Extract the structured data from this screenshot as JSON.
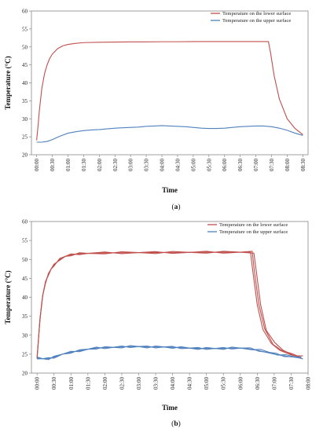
{
  "chart_data": [
    {
      "type": "line",
      "panel_label": "a",
      "caption_open": "(",
      "caption_close": ")",
      "xlabel": "Time",
      "ylabel": "Temperature (°C)",
      "ylim": [
        20,
        60
      ],
      "y_ticks": [
        "20",
        "25",
        "30",
        "35",
        "40",
        "45",
        "50",
        "55",
        "60"
      ],
      "x_ticks": [
        "00:00",
        "00:30",
        "01:00",
        "01:30",
        "02:00",
        "02:30",
        "03:00",
        "03:30",
        "04:00",
        "04:30",
        "05:00",
        "05:30",
        "06:00",
        "06:30",
        "07:00",
        "07:30",
        "08:00",
        "08:30"
      ],
      "xlim_minutes": [
        -10,
        520
      ],
      "grid": false,
      "legend_position": "top-right",
      "series": [
        {
          "name": "Temperature on the lower surface",
          "color": "#c0504d",
          "replicates": 1,
          "x": [
            0,
            3,
            5,
            8,
            10,
            15,
            20,
            25,
            30,
            40,
            50,
            60,
            75,
            90,
            120,
            150,
            180,
            210,
            240,
            270,
            300,
            330,
            360,
            390,
            420,
            444,
            448,
            455,
            465,
            480,
            495,
            510
          ],
          "values": [
            24.0,
            28.5,
            32.0,
            36.0,
            38.5,
            42.5,
            45.0,
            46.8,
            48.0,
            49.5,
            50.3,
            50.7,
            51.0,
            51.2,
            51.3,
            51.35,
            51.4,
            51.4,
            51.45,
            51.45,
            51.5,
            51.5,
            51.5,
            51.5,
            51.5,
            51.5,
            48.5,
            42.0,
            35.5,
            30.0,
            27.3,
            25.6
          ]
        },
        {
          "name": "Temperature on the upper surface",
          "color": "#4f81bd",
          "replicates": 1,
          "x": [
            0,
            10,
            20,
            30,
            45,
            60,
            75,
            90,
            105,
            120,
            135,
            150,
            165,
            180,
            195,
            210,
            225,
            240,
            255,
            270,
            285,
            300,
            315,
            330,
            345,
            360,
            375,
            390,
            405,
            420,
            435,
            450,
            465,
            480,
            495,
            510
          ],
          "values": [
            23.5,
            23.5,
            23.7,
            24.2,
            25.2,
            26.0,
            26.4,
            26.7,
            26.9,
            27.0,
            27.2,
            27.4,
            27.5,
            27.6,
            27.7,
            27.9,
            28.0,
            28.1,
            28.0,
            27.9,
            27.8,
            27.6,
            27.4,
            27.3,
            27.3,
            27.4,
            27.6,
            27.8,
            27.9,
            28.0,
            28.0,
            27.8,
            27.4,
            26.8,
            26.0,
            25.4
          ]
        }
      ]
    },
    {
      "type": "line",
      "panel_label": "b",
      "caption_open": "(",
      "caption_close": ")",
      "xlabel": "Time",
      "ylabel": "Temperature (°C)",
      "ylim": [
        20,
        60
      ],
      "y_ticks": [
        "20",
        "25",
        "30",
        "35",
        "40",
        "45",
        "50",
        "55",
        "60"
      ],
      "x_ticks": [
        "00:00",
        "00:30",
        "01:00",
        "01:30",
        "02:00",
        "02:30",
        "03:00",
        "03:30",
        "04:00",
        "04:30",
        "05:00",
        "05:30",
        "06:00",
        "06:30",
        "07:00",
        "07:30",
        "08:00"
      ],
      "xlim_minutes": [
        -10,
        480
      ],
      "grid": false,
      "legend_position": "top-right",
      "series": [
        {
          "name": "Temperature on the lower surface",
          "color": "#c0504d",
          "replicates": 3,
          "x": [
            0,
            3,
            5,
            8,
            10,
            15,
            20,
            25,
            30,
            40,
            50,
            60,
            75,
            90,
            120,
            150,
            180,
            210,
            240,
            270,
            300,
            330,
            360,
            378,
            382,
            390,
            400,
            415,
            430,
            450,
            465
          ],
          "values": [
            24.0,
            30.0,
            34.0,
            38.0,
            40.5,
            44.0,
            46.0,
            47.5,
            48.5,
            50.0,
            50.8,
            51.2,
            51.5,
            51.6,
            51.7,
            51.75,
            51.8,
            51.8,
            51.85,
            51.85,
            51.9,
            51.9,
            51.9,
            51.9,
            47.0,
            38.0,
            31.5,
            27.8,
            26.0,
            24.8,
            24.3
          ]
        },
        {
          "name": "Temperature on the upper surface",
          "color": "#4f81bd",
          "replicates": 3,
          "x": [
            0,
            10,
            20,
            30,
            45,
            60,
            75,
            90,
            105,
            120,
            135,
            150,
            165,
            180,
            195,
            210,
            225,
            240,
            255,
            270,
            285,
            300,
            315,
            330,
            345,
            360,
            375,
            390,
            405,
            420,
            435,
            450,
            465
          ],
          "values": [
            24.0,
            23.8,
            23.8,
            24.2,
            25.0,
            25.5,
            25.9,
            26.3,
            26.6,
            26.7,
            26.8,
            26.9,
            27.0,
            27.0,
            26.9,
            26.9,
            26.9,
            26.8,
            26.7,
            26.6,
            26.5,
            26.5,
            26.5,
            26.5,
            26.6,
            26.6,
            26.4,
            26.0,
            25.5,
            25.0,
            24.6,
            24.3,
            24.0
          ]
        }
      ]
    }
  ]
}
